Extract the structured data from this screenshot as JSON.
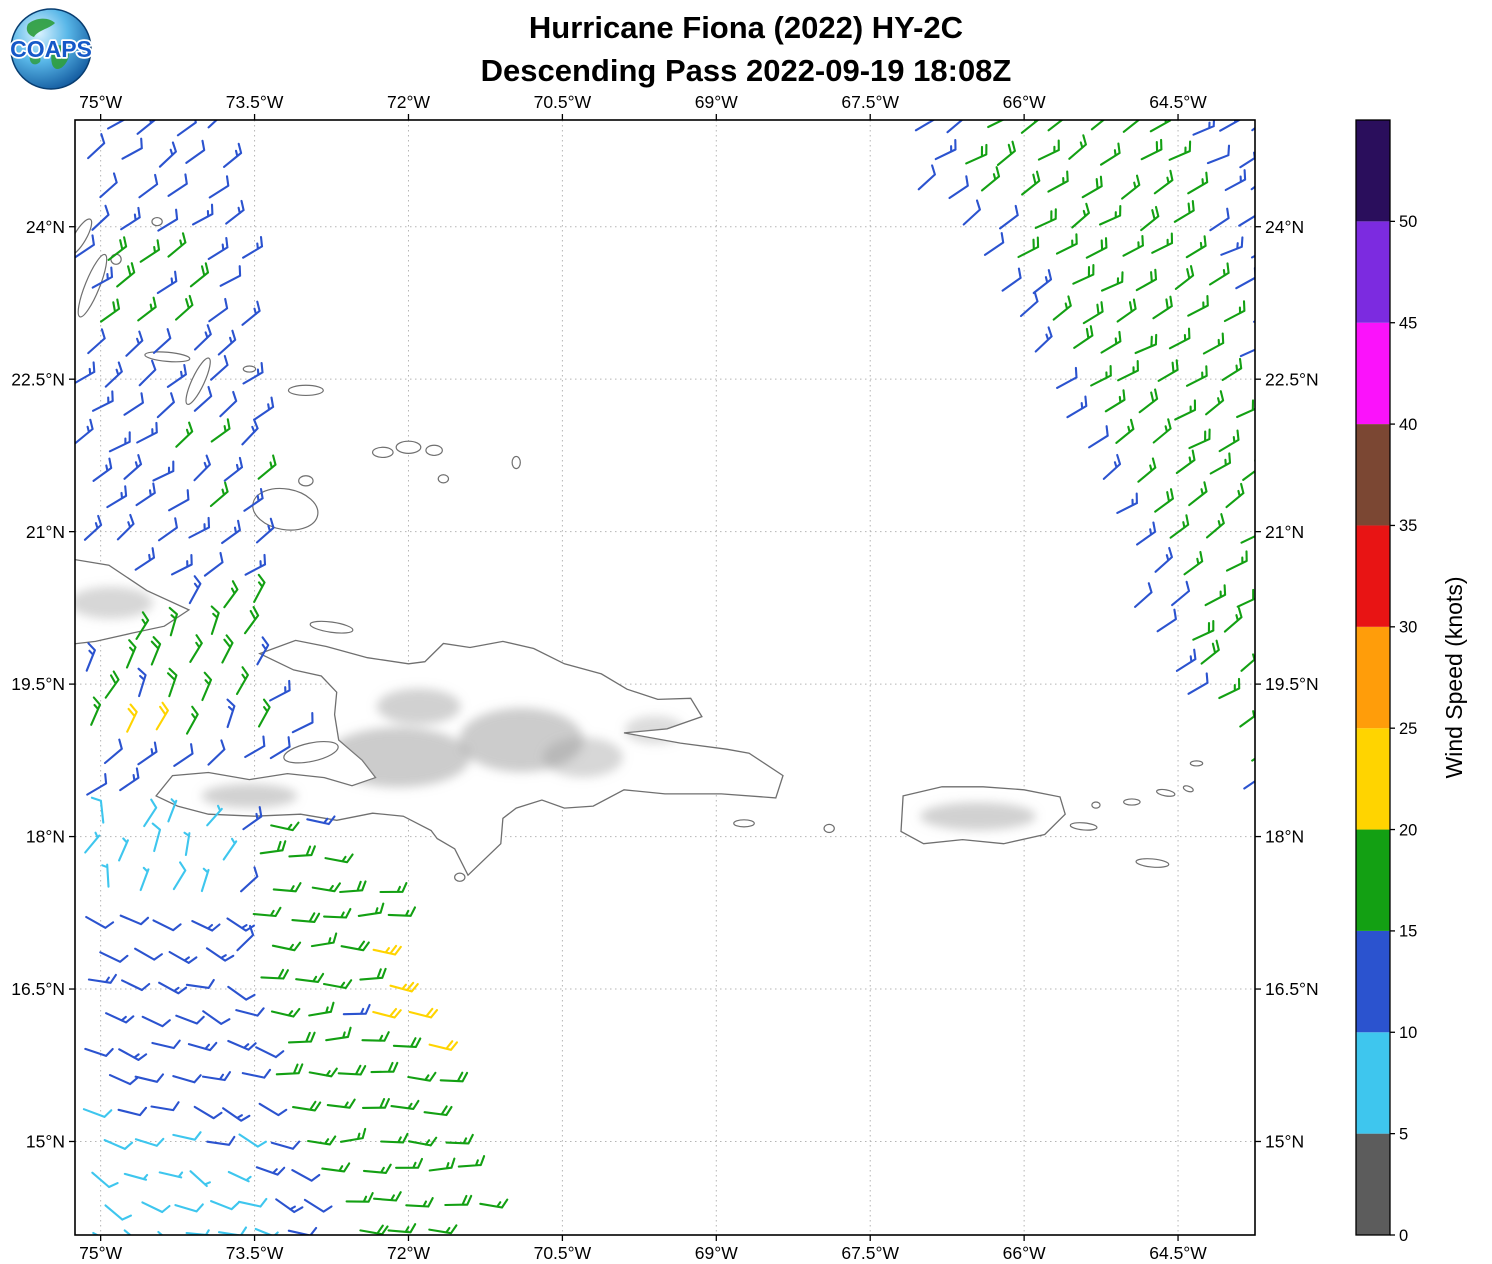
{
  "logo": {
    "text": "COAPS"
  },
  "header": {
    "title": "Hurricane Fiona (2022) HY-2C",
    "subtitle": "Descending Pass 2022-09-19 18:08Z"
  },
  "axes": {
    "lon_ticks": [
      {
        "deg": -75.0,
        "label": "75°W"
      },
      {
        "deg": -73.5,
        "label": "73.5°W"
      },
      {
        "deg": -72.0,
        "label": "72°W"
      },
      {
        "deg": -70.5,
        "label": "70.5°W"
      },
      {
        "deg": -69.0,
        "label": "69°W"
      },
      {
        "deg": -67.5,
        "label": "67.5°W"
      },
      {
        "deg": -66.0,
        "label": "66°W"
      },
      {
        "deg": -64.5,
        "label": "64.5°W"
      }
    ],
    "lat_ticks": [
      {
        "deg": 24.0,
        "label": "24°N"
      },
      {
        "deg": 22.5,
        "label": "22.5°N"
      },
      {
        "deg": 21.0,
        "label": "21°N"
      },
      {
        "deg": 19.5,
        "label": "19.5°N"
      },
      {
        "deg": 18.0,
        "label": "18°N"
      },
      {
        "deg": 16.5,
        "label": "16.5°N"
      },
      {
        "deg": 15.0,
        "label": "15°N"
      }
    ]
  },
  "colorbar": {
    "label": "Wind Speed (knots)",
    "tick_values": [
      0,
      5,
      10,
      15,
      20,
      25,
      30,
      35,
      40,
      45,
      50
    ],
    "max_value": 55,
    "segments": [
      {
        "min": 0,
        "max": 5,
        "color": "#5c5c5c"
      },
      {
        "min": 5,
        "max": 10,
        "color": "#3ec6ee"
      },
      {
        "min": 10,
        "max": 15,
        "color": "#2b53cf"
      },
      {
        "min": 15,
        "max": 20,
        "color": "#13a013"
      },
      {
        "min": 20,
        "max": 25,
        "color": "#ffd400"
      },
      {
        "min": 25,
        "max": 30,
        "color": "#ff9d0a"
      },
      {
        "min": 30,
        "max": 35,
        "color": "#e81414"
      },
      {
        "min": 35,
        "max": 40,
        "color": "#7b4733"
      },
      {
        "min": 40,
        "max": 45,
        "color": "#fb12fb"
      },
      {
        "min": 45,
        "max": 50,
        "color": "#7c2be0"
      },
      {
        "min": 50,
        "max": 55,
        "color": "#2a0e5c"
      }
    ]
  },
  "chart_data": {
    "type": "wind_barbs",
    "title": "Hurricane Fiona (2022) HY-2C",
    "subtitle": "Descending Pass 2022-09-19 18:08Z",
    "units": "knots",
    "lon_range": [
      -75.25,
      -63.75
    ],
    "lat_range": [
      14.08,
      25.05
    ],
    "graticule_dashed": true,
    "barb_spacing_deg": 0.33,
    "swaths": [
      {
        "name": "east-swath",
        "polygon": [
          [
            -67.45,
            25.05
          ],
          [
            -63.72,
            25.05
          ],
          [
            -63.72,
            18.25
          ],
          [
            -64.85,
            20.1
          ],
          [
            -65.95,
            22.6
          ]
        ],
        "default": {
          "speed": 17.0,
          "jitter": 2.0,
          "dir": 58,
          "dir_jitter": 9
        },
        "zones": [
          {
            "name": "west-edge-blue",
            "polygon": [
              [
                -67.45,
                25.05
              ],
              [
                -66.8,
                25.05
              ],
              [
                -65.42,
                22.45
              ],
              [
                -64.52,
                20.2
              ],
              [
                -63.72,
                18.25
              ],
              [
                -64.85,
                20.1
              ],
              [
                -65.95,
                22.6
              ]
            ],
            "speed": 12.0,
            "jitter": 2.0,
            "dir": 55,
            "dir_jitter": 9
          },
          {
            "name": "northeast-corner-blue",
            "polygon": [
              [
                -64.4,
                25.05
              ],
              [
                -63.72,
                25.05
              ],
              [
                -63.72,
                22.2
              ],
              [
                -64.15,
                23.4
              ]
            ],
            "speed": 12.0,
            "jitter": 1.8,
            "dir": 60,
            "dir_jitter": 9
          }
        ]
      },
      {
        "name": "west-swath",
        "polygon": [
          [
            -75.25,
            25.05
          ],
          [
            -73.72,
            25.05
          ],
          [
            -73.5,
            22.5
          ],
          [
            -73.42,
            21.0
          ],
          [
            -73.35,
            19.6
          ],
          [
            -72.85,
            18.35
          ],
          [
            -72.33,
            17.6
          ],
          [
            -71.8,
            16.4
          ],
          [
            -71.58,
            15.4
          ],
          [
            -71.18,
            14.08
          ],
          [
            -75.25,
            14.08
          ]
        ],
        "default": {
          "speed": 12.5,
          "jitter": 2.2,
          "dir": 55,
          "dir_jitter": 10
        },
        "zones": [
          {
            "name": "calm-west-of-haiti",
            "polygon": [
              [
                -75.25,
                18.25
              ],
              [
                -73.7,
                18.25
              ],
              [
                -73.82,
                17.4
              ],
              [
                -75.25,
                17.4
              ]
            ],
            "speed": 7.0,
            "jitter": 1.5,
            "dir": 15,
            "dir_jitter": 30
          },
          {
            "name": "calm-southwest-corner",
            "polygon": [
              [
                -75.25,
                15.35
              ],
              [
                -74.55,
                15.2
              ],
              [
                -73.85,
                14.85
              ],
              [
                -73.3,
                14.08
              ],
              [
                -75.25,
                14.08
              ]
            ],
            "speed": 7.5,
            "jitter": 2.0,
            "dir": 115,
            "dir_jitter": 20
          },
          {
            "name": "gust-spot-gonave",
            "polygon": [
              [
                -74.78,
                19.12
              ],
              [
                -74.42,
                19.12
              ],
              [
                -74.42,
                18.84
              ],
              [
                -74.78,
                18.84
              ]
            ],
            "speed": 21.0,
            "jitter": 1.5,
            "dir": 25,
            "dir_jitter": 8
          },
          {
            "name": "gust-band-south",
            "polygon": [
              [
                -72.6,
                17.2
              ],
              [
                -71.72,
                17.2
              ],
              [
                -71.52,
                15.9
              ],
              [
                -72.28,
                15.95
              ]
            ],
            "speed": 20.5,
            "jitter": 3.0,
            "dir": 95,
            "dir_jitter": 10
          },
          {
            "name": "green-mid-band",
            "polygon": [
              [
                -75.25,
                20.45
              ],
              [
                -73.38,
                20.45
              ],
              [
                -73.35,
                18.9
              ],
              [
                -75.25,
                18.9
              ]
            ],
            "speed": 16.5,
            "jitter": 2.4,
            "dir": 25,
            "dir_jitter": 12
          },
          {
            "name": "green-north-cluster",
            "polygon": [
              [
                -75.05,
                23.75
              ],
              [
                -74.05,
                23.75
              ],
              [
                -74.05,
                22.85
              ],
              [
                -75.05,
                22.85
              ]
            ],
            "speed": 16.5,
            "jitter": 2.0,
            "dir": 55,
            "dir_jitter": 9
          },
          {
            "name": "mixed-cluster",
            "polygon": [
              [
                -74.45,
                22.1
              ],
              [
                -73.45,
                22.1
              ],
              [
                -73.45,
                20.9
              ],
              [
                -74.1,
                20.9
              ]
            ],
            "speed": 15.0,
            "jitter": 2.6,
            "dir": 50,
            "dir_jitter": 10
          },
          {
            "name": "green-south-lobe",
            "polygon": [
              [
                -73.6,
                18.35
              ],
              [
                -72.85,
                18.35
              ],
              [
                -72.33,
                17.6
              ],
              [
                -71.8,
                16.4
              ],
              [
                -71.58,
                15.4
              ],
              [
                -71.18,
                14.08
              ],
              [
                -72.85,
                14.08
              ],
              [
                -73.35,
                15.3
              ],
              [
                -73.6,
                16.9
              ]
            ],
            "speed": 16.8,
            "jitter": 2.2,
            "dir": 92,
            "dir_jitter": 12
          },
          {
            "name": "blue-south",
            "polygon": [
              [
                -75.25,
                17.4
              ],
              [
                -73.8,
                17.4
              ],
              [
                -73.58,
                16.5
              ],
              [
                -73.33,
                15.2
              ],
              [
                -72.85,
                14.08
              ],
              [
                -75.25,
                14.08
              ]
            ],
            "speed": 12.0,
            "jitter": 2.2,
            "dir": 112,
            "dir_jitter": 14
          }
        ]
      }
    ]
  }
}
